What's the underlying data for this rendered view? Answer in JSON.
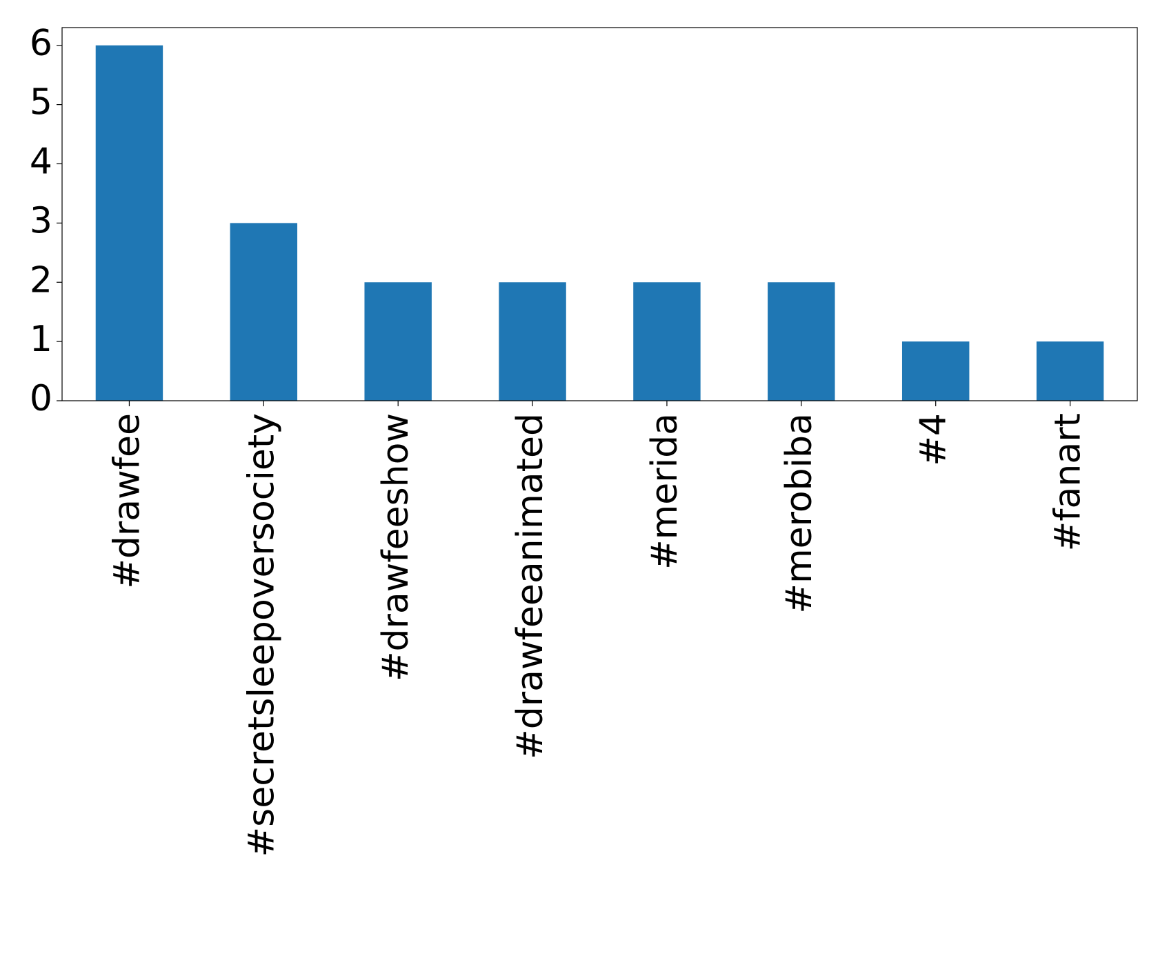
{
  "chart_data": {
    "type": "bar",
    "categories": [
      "#drawfee",
      "#secretsleepoversociety",
      "#drawfeeshow",
      "#drawfeeanimated",
      "#merida",
      "#merobiba",
      "#4",
      "#fanart"
    ],
    "values": [
      6,
      3,
      2,
      2,
      2,
      2,
      1,
      1
    ],
    "color": "#1f77b4",
    "ylim": [
      0,
      6.3
    ],
    "yticks": [
      0,
      1,
      2,
      3,
      4,
      5,
      6
    ],
    "grid": false
  }
}
